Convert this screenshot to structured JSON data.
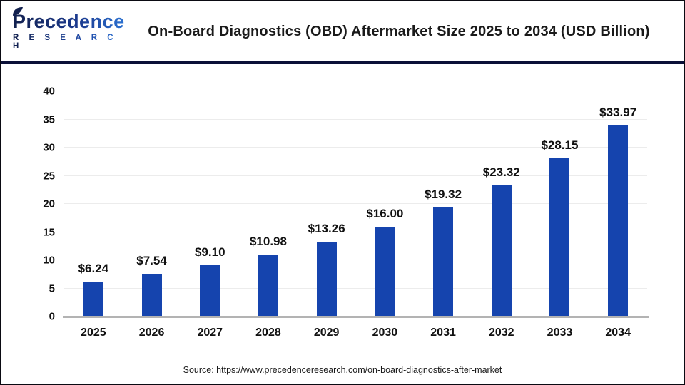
{
  "header": {
    "logo": {
      "name": "Precedence",
      "subname": "R E S E A R C H"
    },
    "title": "On-Board Diagnostics (OBD) Aftermarket Size 2025 to 2034 (USD Billion)"
  },
  "chart_data": {
    "type": "bar",
    "title": "On-Board Diagnostics (OBD) Aftermarket Size 2025 to 2034 (USD Billion)",
    "categories": [
      "2025",
      "2026",
      "2027",
      "2028",
      "2029",
      "2030",
      "2031",
      "2032",
      "2033",
      "2034"
    ],
    "values": [
      6.24,
      7.54,
      9.1,
      10.98,
      13.26,
      16.0,
      19.32,
      23.32,
      28.15,
      33.97
    ],
    "value_labels": [
      "$6.24",
      "$7.54",
      "$9.10",
      "$10.98",
      "$13.26",
      "$16.00",
      "$19.32",
      "$23.32",
      "$28.15",
      "$33.97"
    ],
    "xlabel": "",
    "ylabel": "",
    "ylim": [
      0,
      40
    ],
    "yticks": [
      0,
      5,
      10,
      15,
      20,
      25,
      30,
      35,
      40
    ],
    "grid": true,
    "legend": "none",
    "bar_color": "#1544AE"
  },
  "footer": {
    "source": "Source: https://www.precedenceresearch.com/on-board-diagnostics-after-market"
  },
  "colors": {
    "bar": "#1544AE",
    "gridline": "#ECECEC",
    "axis_line": "#B3B3B3",
    "divider": "#0A1038",
    "border": "#0A0A12",
    "title_text": "#1A1A1A",
    "label_text": "#111111",
    "logo_gradient_start": "#12204E",
    "logo_gradient_end": "#2E7BDD"
  }
}
